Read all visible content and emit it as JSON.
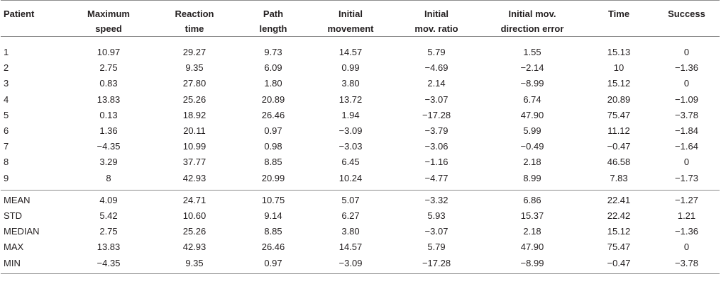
{
  "headers": [
    [
      "Patient"
    ],
    [
      "Maximum",
      "speed"
    ],
    [
      "Reaction",
      "time"
    ],
    [
      "Path",
      "length"
    ],
    [
      "Initial",
      "movement"
    ],
    [
      "Initial",
      "mov. ratio"
    ],
    [
      "Initial mov.",
      "direction error"
    ],
    [
      "Time"
    ],
    [
      "Success"
    ]
  ],
  "patients": [
    [
      "1",
      "10.97",
      "29.27",
      "9.73",
      "14.57",
      "5.79",
      "1.55",
      "15.13",
      "0"
    ],
    [
      "2",
      "2.75",
      "9.35",
      "6.09",
      "0.99",
      "−4.69",
      "−2.14",
      "10",
      "−1.36"
    ],
    [
      "3",
      "0.83",
      "27.80",
      "1.80",
      "3.80",
      "2.14",
      "−8.99",
      "15.12",
      "0"
    ],
    [
      "4",
      "13.83",
      "25.26",
      "20.89",
      "13.72",
      "−3.07",
      "6.74",
      "20.89",
      "−1.09"
    ],
    [
      "5",
      "0.13",
      "18.92",
      "26.46",
      "1.94",
      "−17.28",
      "47.90",
      "75.47",
      "−3.78"
    ],
    [
      "6",
      "1.36",
      "20.11",
      "0.97",
      "−3.09",
      "−3.79",
      "5.99",
      "11.12",
      "−1.84"
    ],
    [
      "7",
      "−4.35",
      "10.99",
      "0.98",
      "−3.03",
      "−3.06",
      "−0.49",
      "−0.47",
      "−1.64"
    ],
    [
      "8",
      "3.29",
      "37.77",
      "8.85",
      "6.45",
      "−1.16",
      "2.18",
      "46.58",
      "0"
    ],
    [
      "9",
      "8",
      "42.93",
      "20.99",
      "10.24",
      "−4.77",
      "8.99",
      "7.83",
      "−1.73"
    ]
  ],
  "stats": [
    [
      "MEAN",
      "4.09",
      "24.71",
      "10.75",
      "5.07",
      "−3.32",
      "6.86",
      "22.41",
      "−1.27"
    ],
    [
      "STD",
      "5.42",
      "10.60",
      "9.14",
      "6.27",
      "5.93",
      "15.37",
      "22.42",
      "1.21"
    ],
    [
      "MEDIAN",
      "2.75",
      "25.26",
      "8.85",
      "3.80",
      "−3.07",
      "2.18",
      "15.12",
      "−1.36"
    ],
    [
      "MAX",
      "13.83",
      "42.93",
      "26.46",
      "14.57",
      "5.79",
      "47.90",
      "75.47",
      "0"
    ],
    [
      "MIN",
      "−4.35",
      "9.35",
      "0.97",
      "−3.09",
      "−17.28",
      "−8.99",
      "−0.47",
      "−3.78"
    ]
  ]
}
